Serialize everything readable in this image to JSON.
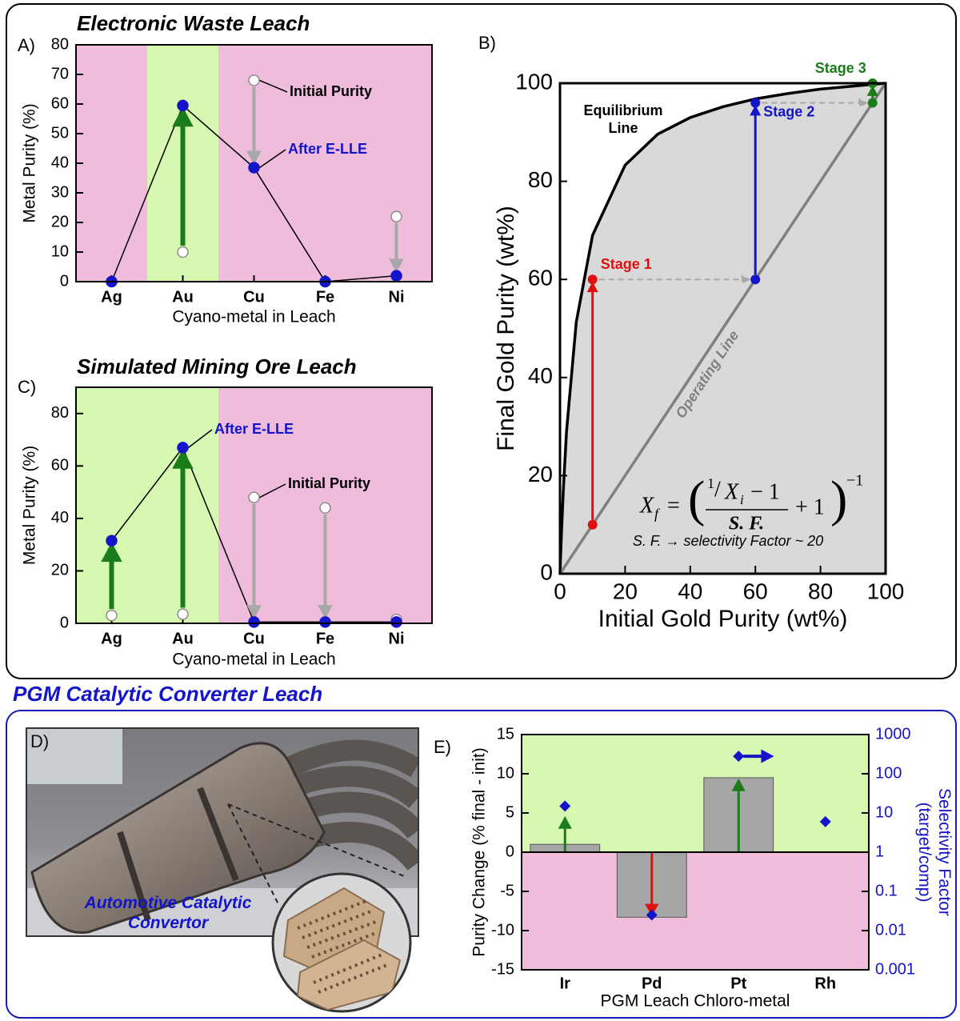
{
  "section_title": "PGM Catalytic Converter Leach",
  "photo": {
    "label": "D)",
    "caption": "Automotive Catalytic Convertor"
  },
  "chart_data": [
    {
      "type": "line",
      "panel": "A)",
      "title": "Electronic Waste Leach",
      "xlabel": "Cyano-metal in Leach",
      "ylabel": "Metal Purity (%)",
      "categories": [
        "Ag",
        "Au",
        "Cu",
        "Fe",
        "Ni"
      ],
      "background_colors": [
        "#f0bcdb",
        "#d6f8b0",
        "#f0bcdb",
        "#f0bcdb",
        "#f0bcdb"
      ],
      "series": [
        {
          "name": "After E-LLE",
          "color": "#1414c8",
          "edgecolor": "#1414c8",
          "text_color": "#1414c8",
          "line_color": "#000000",
          "values": [
            0,
            59.5,
            38.5,
            0,
            2
          ]
        },
        {
          "name": "Initial Purity",
          "color": "#ffffff",
          "edgecolor": "#8c8c8c",
          "text_color": "#000000",
          "values": [
            null,
            10,
            68,
            null,
            22
          ]
        }
      ],
      "arrow_colors": {
        "up": "#1a7d1a",
        "down": "#a8a8a8"
      },
      "ylim": [
        0,
        80
      ],
      "yticks": [
        0,
        10,
        20,
        30,
        40,
        50,
        60,
        70,
        80
      ]
    },
    {
      "type": "line",
      "panel": "B)",
      "xlabel": "Initial Gold Purity (wt%)",
      "ylabel": "Final Gold Purity (wt%)",
      "region_color": "#d9d9d9",
      "series": [
        {
          "name": "Equilibrium Line",
          "color": "#000000",
          "x": [
            0,
            0.2,
            0.5,
            1,
            2,
            5,
            10,
            20,
            30,
            40,
            50,
            60,
            70,
            80,
            90,
            100
          ],
          "values": [
            0,
            3.9,
            9.1,
            16.8,
            29.0,
            51.3,
            69.0,
            83.3,
            89.6,
            93.0,
            95.2,
            96.8,
            97.9,
            98.8,
            99.4,
            100
          ]
        },
        {
          "name": "Operating Line",
          "color": "#808080",
          "x": [
            0,
            100
          ],
          "values": [
            0,
            100
          ]
        }
      ],
      "stages": [
        {
          "name": "Stage 1",
          "color": "#e01010",
          "x": 10,
          "from": 10,
          "to": 60
        },
        {
          "name": "Stage 2",
          "color": "#1414c8",
          "x": 60,
          "from": 60,
          "to": 96
        },
        {
          "name": "Stage 3",
          "color": "#1a7d1a",
          "x": 96,
          "from": 96,
          "to": 100
        }
      ],
      "step_color": "#a8a8a8",
      "formula": {
        "lhs": "X",
        "lhs_sub": "f",
        "eq": "=",
        "open": "(",
        "num_one": "1",
        "slash": "/",
        "num_var": "X",
        "num_sub": "i",
        "num_rest": "− 1",
        "den": "S. F.",
        "rest": "+ 1",
        "close": ")",
        "exp": "−1"
      },
      "annotation": "S. F. → selectivity Factor ~ 20",
      "xlim": [
        0,
        100
      ],
      "ylim": [
        0,
        100
      ],
      "xticks": [
        0,
        20,
        40,
        60,
        80,
        100
      ],
      "yticks": [
        0,
        20,
        40,
        60,
        80,
        100
      ]
    },
    {
      "type": "line",
      "panel": "C)",
      "title": "Simulated Mining Ore Leach",
      "xlabel": "Cyano-metal in Leach",
      "ylabel": "Metal Purity (%)",
      "categories": [
        "Ag",
        "Au",
        "Cu",
        "Fe",
        "Ni"
      ],
      "background_colors": [
        "#d6f8b0",
        "#d6f8b0",
        "#f0bcdb",
        "#f0bcdb",
        "#f0bcdb"
      ],
      "series": [
        {
          "name": "After E-LLE",
          "color": "#1414c8",
          "edgecolor": "#1414c8",
          "text_color": "#1414c8",
          "line_color": "#000000",
          "values": [
            31.5,
            67,
            0.5,
            0.5,
            0.5
          ]
        },
        {
          "name": "Initial Purity",
          "color": "#ffffff",
          "edgecolor": "#8c8c8c",
          "text_color": "#000000",
          "values": [
            3,
            3.5,
            48,
            44,
            1.5
          ]
        }
      ],
      "arrow_colors": {
        "up": "#1a7d1a",
        "down": "#a8a8a8"
      },
      "ylim": [
        0,
        90
      ],
      "yticks": [
        0,
        20,
        40,
        60,
        80
      ]
    },
    {
      "type": "bar",
      "panel": "E)",
      "xlabel": "PGM Leach Chloro-metal",
      "ylabel": "Purity Change (% final - init)",
      "y2label": "Selectivity Factor (target/comp)",
      "categories": [
        "Ir",
        "Pd",
        "Pt",
        "Rh"
      ],
      "background": {
        "positive": "#d6f8b0",
        "negative": "#f0bcdb"
      },
      "arrow_colors": {
        "up": "#1a7d1a",
        "down": "#e01010"
      },
      "series": [
        {
          "color": "#a6a6a6",
          "values": [
            1,
            -8.3,
            9.5,
            null
          ]
        },
        {
          "axis": "y2",
          "color": "#1414c8",
          "marker": "diamond",
          "values": [
            15,
            0.025,
            280,
            6
          ],
          "lower_bound": [
            false,
            false,
            true,
            false
          ]
        }
      ],
      "ylim": [
        -15,
        15
      ],
      "yticks": [
        -15,
        -10,
        -5,
        0,
        5,
        10,
        15
      ],
      "y2lim": [
        0.001,
        1000
      ],
      "y2ticks": [
        0.001,
        0.01,
        0.1,
        1,
        10,
        100,
        1000
      ],
      "y2scale": "log",
      "y2_color": "#1414c8"
    }
  ]
}
